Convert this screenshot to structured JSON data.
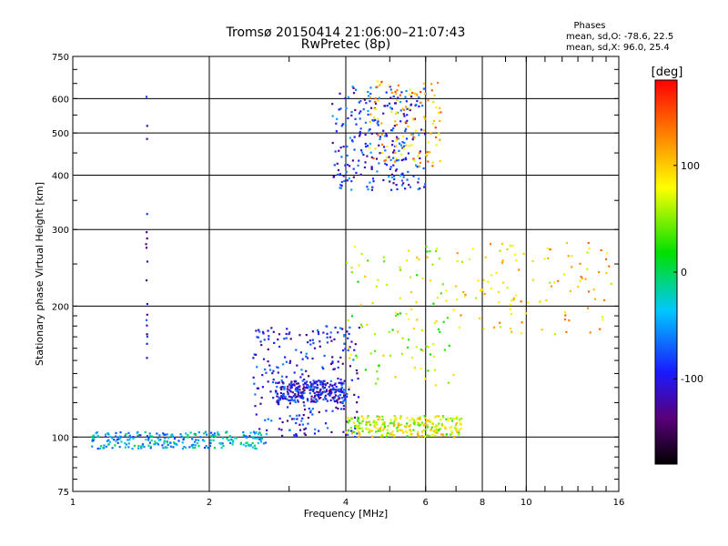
{
  "chart_data": {
    "type": "scatter",
    "title": "Tromsø 20150414 21:06:00–21:07:43",
    "subtitle": "RwPretec (8p)",
    "xlabel": "Frequency [MHz]",
    "ylabel": "Stationary phase Virtual Height [km]",
    "x_scale": "log",
    "y_scale": "log",
    "xlim": [
      1,
      16
    ],
    "ylim": [
      75,
      750
    ],
    "x_ticks": [
      1,
      2,
      4,
      6,
      8,
      10,
      16
    ],
    "y_ticks": [
      75,
      100,
      200,
      300,
      400,
      500,
      600,
      750
    ],
    "grid": true,
    "colorbar": {
      "label": "[deg]",
      "min": -180,
      "max": 180,
      "ticks": [
        -100,
        0,
        100
      ],
      "colormap": "rainbow (black-purple-blue-cyan-green-yellow-orange-red)"
    },
    "phase_stats": {
      "heading": "Phases",
      "o_line": "mean, sd,O:  -78.6,  22.5",
      "x_line": "mean, sd,X:  96.0,  25.4"
    },
    "clusters": [
      {
        "x_range": [
          1.1,
          2.7
        ],
        "y_range": [
          94,
          103
        ],
        "phase": -40,
        "density": "high"
      },
      {
        "x_range": [
          2.5,
          4.3
        ],
        "y_range": [
          100,
          180
        ],
        "phase": -100,
        "density": "high"
      },
      {
        "x_range": [
          2.8,
          4.0
        ],
        "y_range": [
          120,
          135
        ],
        "phase": -100,
        "density": "high"
      },
      {
        "x_range": [
          4.0,
          7.2
        ],
        "y_range": [
          100,
          112
        ],
        "phase": 70,
        "density": "high"
      },
      {
        "x_range": [
          4.0,
          7.0
        ],
        "y_range": [
          130,
          280
        ],
        "phase": 60,
        "density": "medium"
      },
      {
        "x_range": [
          3.7,
          6.0
        ],
        "y_range": [
          370,
          640
        ],
        "phase": -90,
        "density": "high"
      },
      {
        "x_range": [
          4.5,
          6.5
        ],
        "y_range": [
          420,
          660
        ],
        "phase": 110,
        "density": "medium"
      },
      {
        "x_range": [
          7.0,
          15.5
        ],
        "y_range": [
          170,
          280
        ],
        "phase": 100,
        "density": "medium"
      },
      {
        "x_range": [
          1.45,
          1.46
        ],
        "y_range": [
          140,
          640
        ],
        "phase": -110,
        "density": "low"
      }
    ]
  }
}
